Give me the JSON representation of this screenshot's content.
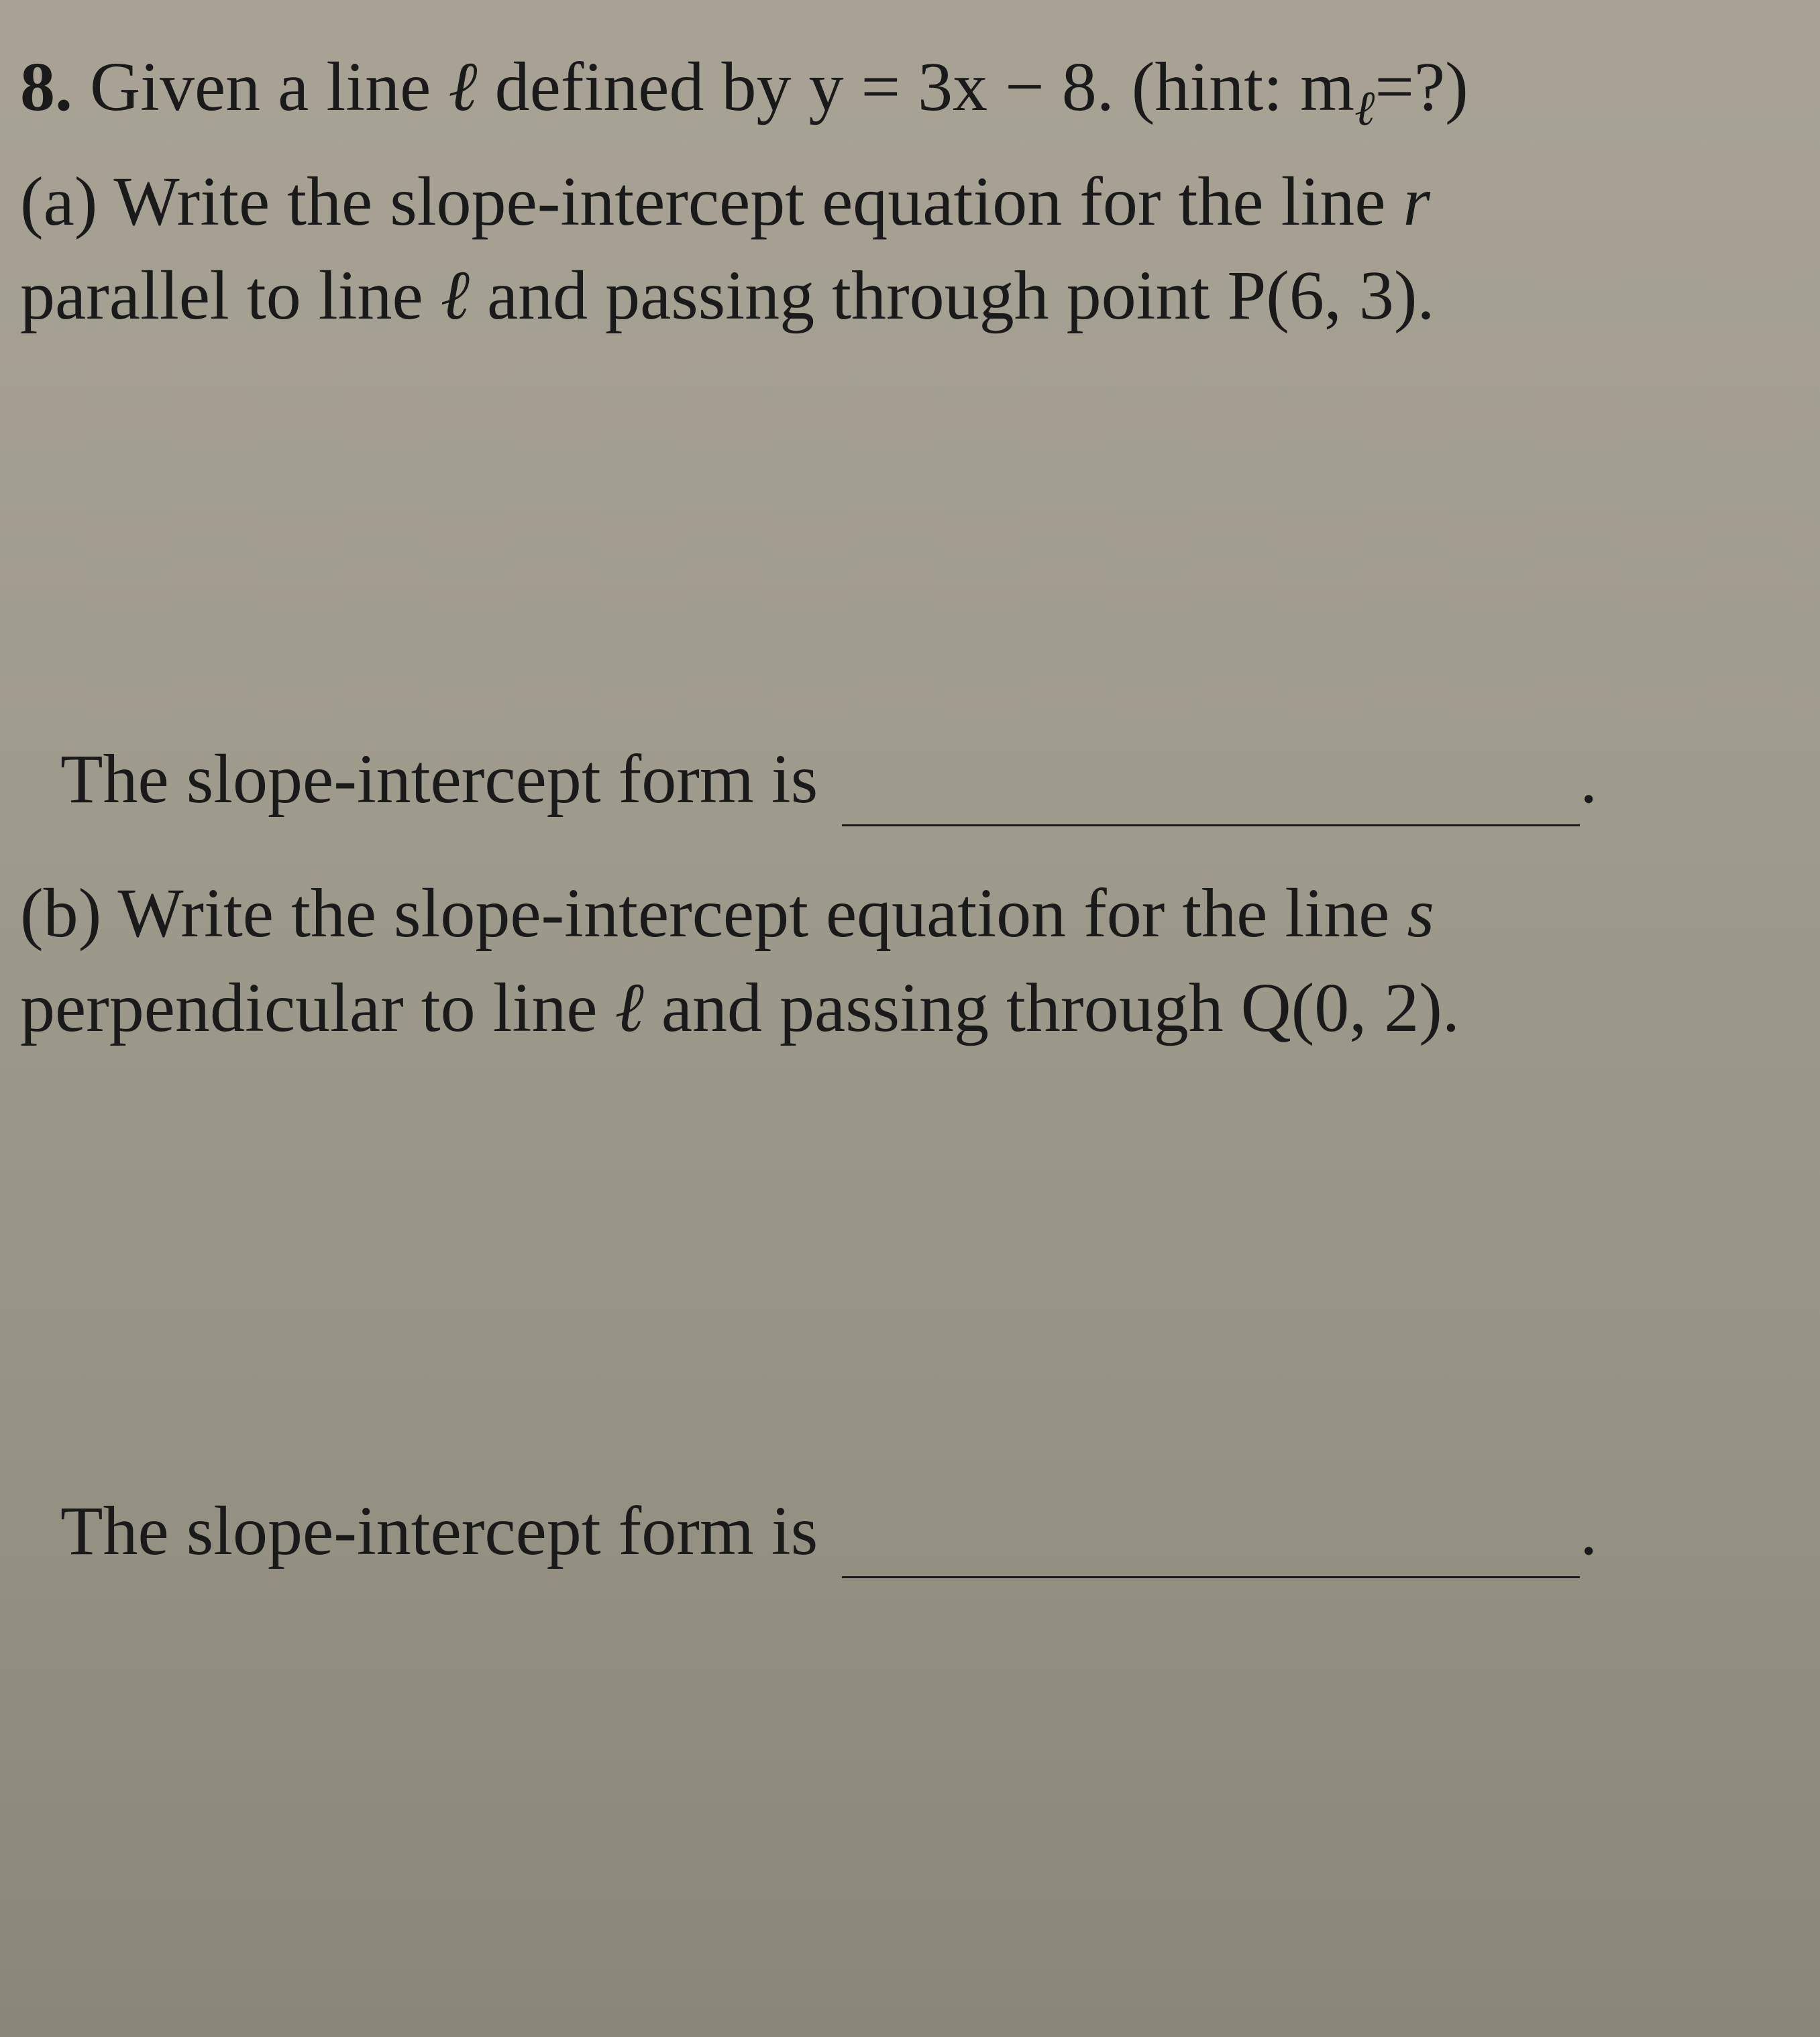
{
  "problem": {
    "number": "8.",
    "intro_text_1": " Given a line ",
    "line_var": "ℓ",
    "intro_text_2": " defined by y = 3x − 8. (hint: m",
    "subscript_var": "ℓ",
    "intro_text_3": "=?)"
  },
  "part_a": {
    "label": "(a)",
    "text_1": " Write the slope-intercept equation for the line ",
    "line_r": "r",
    "text_2": "parallel to line ",
    "line_l": "ℓ",
    "text_3": " and passing through point P(6, 3).",
    "answer_label": "The slope-intercept form is "
  },
  "part_b": {
    "label": "(b)",
    "text_1": " Write the slope-intercept equation for the line ",
    "line_s": "s",
    "text_2": "perpendicular to line ",
    "line_l": "ℓ",
    "text_3": " and passing through Q(0, 2).",
    "answer_label": "The slope-intercept form is "
  },
  "styling": {
    "background_gradient_start": "#a8a395",
    "background_gradient_end": "#8a8678",
    "text_color": "#1a1a1a",
    "font_family": "Times New Roman",
    "base_font_size": 104,
    "blank_line_width": 1100,
    "blank_line_border": "3px solid #1a1a1a"
  }
}
